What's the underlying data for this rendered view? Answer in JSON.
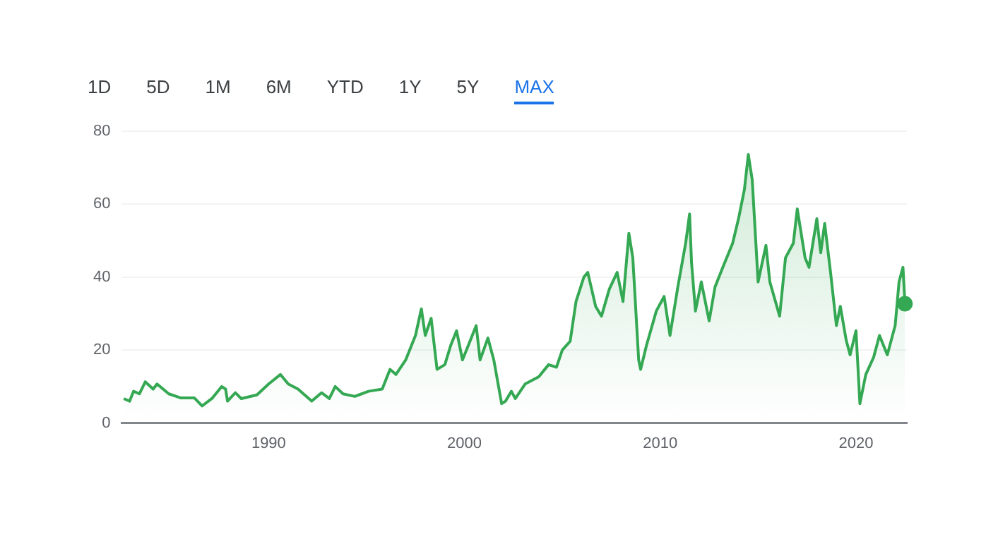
{
  "chart_data": {
    "type": "area",
    "annotations": [
      "1D",
      "5D",
      "1M",
      "6M",
      "YTD",
      "1Y",
      "5Y",
      "MAX"
    ],
    "series": [
      {
        "color": "#34a853",
        "x": [
          1982.6,
          1982.9,
          1983.1,
          1983.4,
          1983.7,
          1984.1,
          1984.3,
          1984.9,
          1985.5,
          1986.2,
          1986.6,
          1987.1,
          1987.6,
          1987.8,
          1987.9,
          1988.3,
          1988.6,
          1989.4,
          1990,
          1990.6,
          1991,
          1991.5,
          1992.2,
          1992.7,
          1993.1,
          1993.4,
          1993.8,
          1994.4,
          1995.1,
          1995.8,
          1996.2,
          1996.5,
          1997,
          1997.5,
          1997.8,
          1998,
          1998.3,
          1998.6,
          1999,
          1999.3,
          1999.6,
          1999.9,
          2000.2,
          2000.6,
          2000.8,
          2001.2,
          2001.5,
          2001.9,
          2002.1,
          2002.4,
          2002.6,
          2003.1,
          2003.8,
          2004.3,
          2004.7,
          2005,
          2005.4,
          2005.7,
          2006.1,
          2006.3,
          2006.7,
          2007,
          2007.4,
          2007.8,
          2008.1,
          2008.4,
          2008.6,
          2008.9,
          2009,
          2009.3,
          2009.8,
          2010.2,
          2010.5,
          2010.9,
          2011.3,
          2011.5,
          2011.6,
          2011.8,
          2012.1,
          2012.5,
          2012.8,
          2013.2,
          2013.7,
          2014,
          2014.3,
          2014.5,
          2014.7,
          2015,
          2015.4,
          2015.6,
          2016.1,
          2016.4,
          2016.8,
          2017,
          2017.4,
          2017.6,
          2018,
          2018.2,
          2018.4,
          2018.7,
          2019,
          2019.2,
          2019.5,
          2019.7,
          2020,
          2020.2,
          2020.5,
          2020.9,
          2021.2,
          2021.6,
          2022,
          2022.2,
          2022.4,
          2022.5
        ],
        "values": [
          6.7,
          6,
          8.7,
          8,
          11.3,
          9.3,
          10.7,
          8,
          6.9,
          6.9,
          4.7,
          6.7,
          10,
          9.3,
          6,
          8.3,
          6.7,
          7.7,
          10.7,
          13.3,
          10.7,
          9.3,
          6,
          8.3,
          6.7,
          10,
          8,
          7.3,
          8.7,
          9.3,
          14.7,
          13.3,
          17.3,
          24,
          31.3,
          24,
          28.7,
          14.7,
          16,
          21.3,
          25.3,
          17.3,
          21.3,
          26.7,
          17.3,
          23.3,
          17.3,
          5.3,
          6,
          8.7,
          6.7,
          10.7,
          12.7,
          16,
          15.3,
          20,
          22.4,
          33.3,
          40,
          41.3,
          32,
          29.3,
          36.7,
          41.3,
          33.3,
          52,
          45.3,
          17.3,
          14.7,
          21.3,
          30.7,
          34.7,
          24,
          37.3,
          49.3,
          57.3,
          44,
          30.7,
          38.7,
          28,
          37.3,
          42.7,
          49.3,
          56,
          64,
          73.6,
          66.7,
          38.7,
          48.7,
          38.7,
          29.3,
          45.3,
          49.3,
          58.7,
          45.3,
          42.7,
          56,
          46.7,
          54.7,
          41.3,
          26.7,
          32,
          22.7,
          18.7,
          25.3,
          5.3,
          13.3,
          18,
          24,
          18.7,
          26.7,
          38.7,
          42.7,
          32.7
        ]
      },
      {
        "type": "scatter",
        "color": "#34a853",
        "x": [
          2022.5
        ],
        "values": [
          32.7
        ]
      }
    ],
    "xlim": [
      1982.5,
      2022.6
    ],
    "xticks": [
      1990,
      2000,
      2010,
      2020
    ],
    "ylim": [
      0,
      80
    ],
    "yticks": [
      0,
      20,
      40,
      60,
      80
    ],
    "grid": "y",
    "line_style": "solid"
  }
}
